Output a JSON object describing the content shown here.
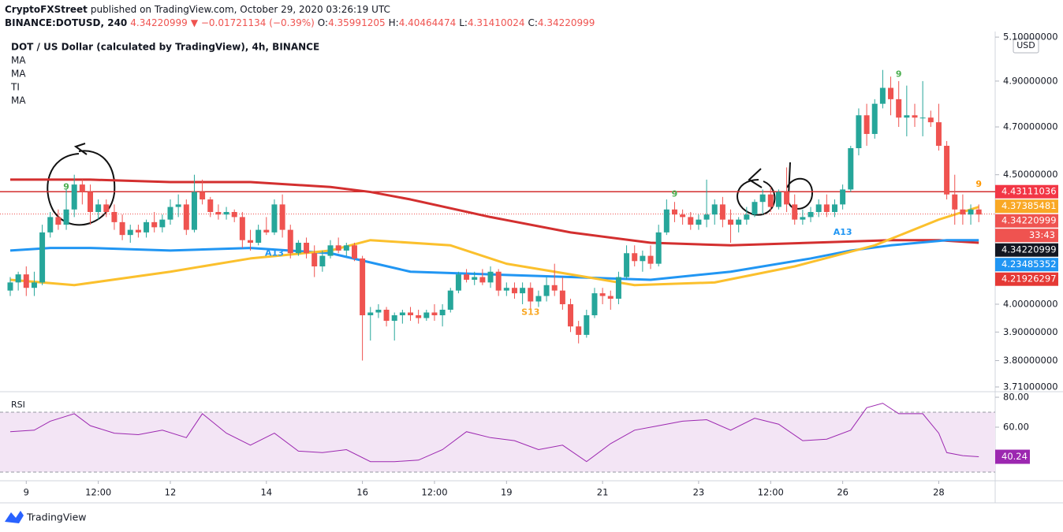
{
  "chart_data": {
    "type": "candlestick",
    "publisher": "CryptoFXStreet",
    "published": "published on TradingView.com, October 29, 2020 03:26:19 UTC",
    "symbol": "BINANCE:DOTUSD, 240",
    "last": "4.34220999",
    "change": "▼ −0.01721134 (−0.39%)",
    "ohlc": [
      {
        "key": "O:",
        "value": "4.35991205"
      },
      {
        "key": "H:",
        "value": "4.40464474"
      },
      {
        "key": "L:",
        "value": "4.31410024"
      },
      {
        "key": "C:",
        "value": "4.34220999"
      }
    ],
    "title": "DOT / US Dollar (calculated by TradingView), 4h, BINANCE",
    "indicators": [
      "MA",
      "MA",
      "TI",
      "MA"
    ],
    "currency": "USD",
    "up_color": "#26a69a",
    "down_color": "#ef5350",
    "log_scale": true,
    "xlim": [
      -1.28,
      123.05
    ],
    "xticks": [
      {
        "value": 2,
        "label": "9"
      },
      {
        "value": 11,
        "label": "12:00"
      },
      {
        "value": 20,
        "label": "12"
      },
      {
        "value": 32,
        "label": "14"
      },
      {
        "value": 44,
        "label": "16"
      },
      {
        "value": 53,
        "label": "12:00"
      },
      {
        "value": 62,
        "label": "19"
      },
      {
        "value": 74,
        "label": "21"
      },
      {
        "value": 86,
        "label": "23"
      },
      {
        "value": 95,
        "label": "12:00"
      },
      {
        "value": 104,
        "label": "26"
      },
      {
        "value": 116,
        "label": "28"
      }
    ],
    "ylim": [
      3.694,
      5.126
    ],
    "yticks": [
      {
        "value": 5.1,
        "label": "5.10000000"
      },
      {
        "value": 4.9,
        "label": "4.90000000"
      },
      {
        "value": 4.7,
        "label": "4.70000000"
      },
      {
        "value": 4.5,
        "label": "4.50000000"
      },
      {
        "value": 4.0,
        "label": "4.00000000"
      },
      {
        "value": 3.9,
        "label": "3.90000000"
      },
      {
        "value": 3.8,
        "label": "3.80000000"
      },
      {
        "value": 3.71,
        "label": "3.71000000"
      }
    ],
    "candles": [
      [
        4.05,
        4.1,
        4.03,
        4.08
      ],
      [
        4.08,
        4.12,
        4.05,
        4.11
      ],
      [
        4.11,
        4.14,
        4.03,
        4.06
      ],
      [
        4.06,
        4.12,
        4.03,
        4.08
      ],
      [
        4.08,
        4.3,
        4.07,
        4.27
      ],
      [
        4.27,
        4.35,
        4.25,
        4.33
      ],
      [
        4.33,
        4.36,
        4.28,
        4.3
      ],
      [
        4.3,
        4.44,
        4.28,
        4.36
      ],
      [
        4.36,
        4.5,
        4.33,
        4.46
      ],
      [
        4.46,
        4.48,
        4.38,
        4.43
      ],
      [
        4.43,
        4.46,
        4.3,
        4.35
      ],
      [
        4.35,
        4.4,
        4.32,
        4.38
      ],
      [
        4.38,
        4.4,
        4.33,
        4.35
      ],
      [
        4.35,
        4.38,
        4.28,
        4.31
      ],
      [
        4.31,
        4.34,
        4.24,
        4.26
      ],
      [
        4.26,
        4.3,
        4.23,
        4.28
      ],
      [
        4.28,
        4.3,
        4.25,
        4.27
      ],
      [
        4.27,
        4.32,
        4.25,
        4.31
      ],
      [
        4.31,
        4.35,
        4.27,
        4.29
      ],
      [
        4.29,
        4.34,
        4.27,
        4.32
      ],
      [
        4.32,
        4.4,
        4.3,
        4.37
      ],
      [
        4.37,
        4.42,
        4.33,
        4.38
      ],
      [
        4.38,
        4.4,
        4.26,
        4.28
      ],
      [
        4.28,
        4.5,
        4.27,
        4.43
      ],
      [
        4.43,
        4.48,
        4.38,
        4.4
      ],
      [
        4.4,
        4.41,
        4.33,
        4.35
      ],
      [
        4.35,
        4.38,
        4.32,
        4.34
      ],
      [
        4.34,
        4.37,
        4.32,
        4.35
      ],
      [
        4.35,
        4.36,
        4.31,
        4.33
      ],
      [
        4.33,
        4.35,
        4.21,
        4.24
      ],
      [
        4.24,
        4.28,
        4.2,
        4.23
      ],
      [
        4.23,
        4.3,
        4.22,
        4.28
      ],
      [
        4.28,
        4.33,
        4.26,
        4.27
      ],
      [
        4.27,
        4.4,
        4.26,
        4.38
      ],
      [
        4.38,
        4.42,
        4.25,
        4.28
      ],
      [
        4.28,
        4.3,
        4.17,
        4.19
      ],
      [
        4.19,
        4.24,
        4.18,
        4.23
      ],
      [
        4.23,
        4.25,
        4.17,
        4.19
      ],
      [
        4.19,
        4.22,
        4.1,
        4.14
      ],
      [
        4.14,
        4.2,
        4.12,
        4.18
      ],
      [
        4.18,
        4.24,
        4.17,
        4.22
      ],
      [
        4.22,
        4.25,
        4.19,
        4.2
      ],
      [
        4.2,
        4.23,
        4.18,
        4.22
      ],
      [
        4.22,
        4.23,
        4.16,
        4.17
      ],
      [
        4.17,
        4.18,
        3.8,
        3.96
      ],
      [
        3.96,
        3.99,
        3.87,
        3.97
      ],
      [
        3.97,
        4.0,
        3.95,
        3.98
      ],
      [
        3.98,
        3.99,
        3.92,
        3.94
      ],
      [
        3.94,
        3.97,
        3.87,
        3.96
      ],
      [
        3.96,
        3.98,
        3.93,
        3.97
      ],
      [
        3.97,
        3.99,
        3.94,
        3.96
      ],
      [
        3.96,
        3.98,
        3.93,
        3.95
      ],
      [
        3.95,
        3.98,
        3.94,
        3.97
      ],
      [
        3.97,
        4.0,
        3.94,
        3.96
      ],
      [
        3.96,
        4.0,
        3.92,
        3.98
      ],
      [
        3.98,
        4.06,
        3.97,
        4.05
      ],
      [
        4.05,
        4.12,
        4.04,
        4.11
      ],
      [
        4.11,
        4.13,
        4.08,
        4.09
      ],
      [
        4.09,
        4.12,
        4.07,
        4.1
      ],
      [
        4.1,
        4.13,
        4.07,
        4.08
      ],
      [
        4.08,
        4.14,
        4.06,
        4.12
      ],
      [
        4.12,
        4.13,
        4.03,
        4.05
      ],
      [
        4.05,
        4.08,
        4.03,
        4.06
      ],
      [
        4.06,
        4.08,
        4.02,
        4.04
      ],
      [
        4.04,
        4.08,
        4.0,
        4.06
      ],
      [
        4.06,
        4.08,
        3.98,
        4.01
      ],
      [
        4.01,
        4.05,
        3.99,
        4.03
      ],
      [
        4.03,
        4.1,
        4.01,
        4.07
      ],
      [
        4.07,
        4.15,
        4.03,
        4.05
      ],
      [
        4.05,
        4.1,
        3.98,
        4.0
      ],
      [
        4.0,
        4.02,
        3.9,
        3.92
      ],
      [
        3.92,
        3.94,
        3.86,
        3.89
      ],
      [
        3.89,
        3.98,
        3.88,
        3.96
      ],
      [
        3.96,
        4.06,
        3.95,
        4.04
      ],
      [
        4.04,
        4.06,
        4.0,
        4.03
      ],
      [
        4.03,
        4.05,
        3.98,
        4.02
      ],
      [
        4.02,
        4.12,
        4.0,
        4.1
      ],
      [
        4.1,
        4.22,
        4.09,
        4.19
      ],
      [
        4.19,
        4.22,
        4.14,
        4.16
      ],
      [
        4.16,
        4.2,
        4.12,
        4.18
      ],
      [
        4.18,
        4.22,
        4.13,
        4.15
      ],
      [
        4.15,
        4.3,
        4.14,
        4.27
      ],
      [
        4.27,
        4.4,
        4.26,
        4.36
      ],
      [
        4.36,
        4.39,
        4.31,
        4.34
      ],
      [
        4.34,
        4.36,
        4.3,
        4.33
      ],
      [
        4.33,
        4.35,
        4.28,
        4.3
      ],
      [
        4.3,
        4.34,
        4.28,
        4.32
      ],
      [
        4.32,
        4.48,
        4.29,
        4.34
      ],
      [
        4.34,
        4.4,
        4.3,
        4.38
      ],
      [
        4.38,
        4.41,
        4.29,
        4.32
      ],
      [
        4.32,
        4.36,
        4.23,
        4.3
      ],
      [
        4.3,
        4.33,
        4.27,
        4.32
      ],
      [
        4.32,
        4.37,
        4.3,
        4.34
      ],
      [
        4.34,
        4.4,
        4.33,
        4.39
      ],
      [
        4.39,
        4.44,
        4.34,
        4.42
      ],
      [
        4.42,
        4.45,
        4.35,
        4.37
      ],
      [
        4.37,
        4.44,
        4.36,
        4.43
      ],
      [
        4.43,
        4.53,
        4.35,
        4.38
      ],
      [
        4.38,
        4.42,
        4.3,
        4.32
      ],
      [
        4.32,
        4.36,
        4.3,
        4.33
      ],
      [
        4.33,
        4.37,
        4.31,
        4.35
      ],
      [
        4.35,
        4.4,
        4.33,
        4.38
      ],
      [
        4.38,
        4.42,
        4.33,
        4.35
      ],
      [
        4.35,
        4.4,
        4.33,
        4.38
      ],
      [
        4.38,
        4.46,
        4.36,
        4.44
      ],
      [
        4.44,
        4.62,
        4.43,
        4.61
      ],
      [
        4.61,
        4.78,
        4.58,
        4.75
      ],
      [
        4.75,
        4.8,
        4.62,
        4.67
      ],
      [
        4.67,
        4.82,
        4.65,
        4.8
      ],
      [
        4.8,
        4.95,
        4.78,
        4.87
      ],
      [
        4.87,
        4.92,
        4.75,
        4.82
      ],
      [
        4.82,
        4.9,
        4.7,
        4.74
      ],
      [
        4.74,
        4.88,
        4.66,
        4.75
      ],
      [
        4.75,
        4.8,
        4.7,
        4.74
      ],
      [
        4.74,
        4.9,
        4.66,
        4.74
      ],
      [
        4.74,
        4.77,
        4.7,
        4.72
      ],
      [
        4.72,
        4.8,
        4.6,
        4.62
      ],
      [
        4.62,
        4.64,
        4.4,
        4.42
      ],
      [
        4.42,
        4.5,
        4.3,
        4.36
      ],
      [
        4.36,
        4.42,
        4.3,
        4.34
      ],
      [
        4.34,
        4.38,
        4.3,
        4.36
      ],
      [
        4.36,
        4.38,
        4.31,
        4.34
      ]
    ],
    "ma_lines": [
      {
        "color": "#d32f2f",
        "x": [
          0,
          10,
          20,
          30,
          40,
          45,
          50,
          60,
          70,
          80,
          90,
          100,
          110,
          116,
          121
        ],
        "values": [
          4.48,
          4.48,
          4.47,
          4.47,
          4.45,
          4.43,
          4.4,
          4.33,
          4.27,
          4.23,
          4.22,
          4.23,
          4.24,
          4.24,
          4.23
        ]
      },
      {
        "color": "#2196f3",
        "x": [
          0,
          5,
          10,
          20,
          30,
          40,
          50,
          60,
          70,
          80,
          90,
          100,
          105,
          110,
          117,
          121
        ],
        "values": [
          4.2,
          4.21,
          4.21,
          4.2,
          4.21,
          4.19,
          4.12,
          4.11,
          4.1,
          4.09,
          4.12,
          4.17,
          4.2,
          4.22,
          4.24,
          4.24
        ]
      },
      {
        "color": "#fbc02d",
        "x": [
          0,
          8,
          20,
          30,
          40,
          45,
          55,
          62,
          70,
          78,
          88,
          98,
          108,
          116,
          121
        ],
        "values": [
          4.09,
          4.07,
          4.12,
          4.17,
          4.2,
          4.24,
          4.22,
          4.15,
          4.11,
          4.07,
          4.08,
          4.14,
          4.22,
          4.32,
          4.37
        ]
      }
    ],
    "level": {
      "value": 4.43111036,
      "color": "#d32f2f"
    },
    "last_price": {
      "value": 4.34220999,
      "color": "#ef5350"
    },
    "price_labels": [
      {
        "value": 4.43111036,
        "color": "#f23645"
      },
      {
        "value": 4.37385481,
        "color": "#f9a825"
      },
      {
        "value": 4.34220999,
        "color": "#ef5350"
      },
      {
        "label": "33:43",
        "color": "#ef5350"
      },
      {
        "value": 4.34220999,
        "color": "#131722"
      },
      {
        "value": 4.23485352,
        "color": "#2196f3"
      },
      {
        "value": 4.21926297,
        "color": "#e53935"
      }
    ],
    "annotations": [
      {
        "text": "9",
        "x": 7,
        "y": 4.45,
        "color": "#4caf50"
      },
      {
        "text": "A13",
        "x": 33,
        "y": 4.19,
        "color": "#2196f3"
      },
      {
        "text": "S13",
        "x": 65,
        "y": 3.97,
        "color": "#f9a825"
      },
      {
        "text": "9",
        "x": 83,
        "y": 4.42,
        "color": "#4caf50"
      },
      {
        "text": "A13",
        "x": 104,
        "y": 4.27,
        "color": "#2196f3"
      },
      {
        "text": "9",
        "x": 111,
        "y": 4.93,
        "color": "#4caf50"
      },
      {
        "text": "9",
        "x": 121,
        "y": 4.46,
        "color": "#ff9800"
      }
    ],
    "rsi": {
      "title": "RSI",
      "color": "#9c27b0",
      "ylim": [
        24.2,
        83.7
      ],
      "yticks": [
        {
          "value": 80,
          "label": "80.00"
        },
        {
          "value": 60,
          "label": "60.00"
        }
      ],
      "bands": [
        70,
        30
      ],
      "x": [
        0,
        3,
        5,
        8,
        10,
        13,
        16,
        19,
        22,
        24,
        27,
        30,
        33,
        36,
        39,
        42,
        45,
        48,
        51,
        54,
        57,
        60,
        63,
        66,
        69,
        72,
        75,
        78,
        81,
        84,
        87,
        90,
        93,
        96,
        99,
        102,
        105,
        107,
        109,
        111,
        114,
        116,
        117,
        119,
        121
      ],
      "values": [
        57,
        58,
        64,
        69,
        61,
        56,
        55,
        58,
        53,
        69,
        56,
        48,
        56,
        44,
        43,
        45,
        37,
        37,
        38,
        45,
        57,
        53,
        51,
        45,
        48,
        37,
        49,
        58,
        61,
        64,
        65,
        58,
        66,
        62,
        51,
        52,
        58,
        73,
        76,
        69,
        69,
        56,
        43,
        41,
        40.24
      ],
      "value_labels": "40.24"
    },
    "footer": "TradingView"
  }
}
